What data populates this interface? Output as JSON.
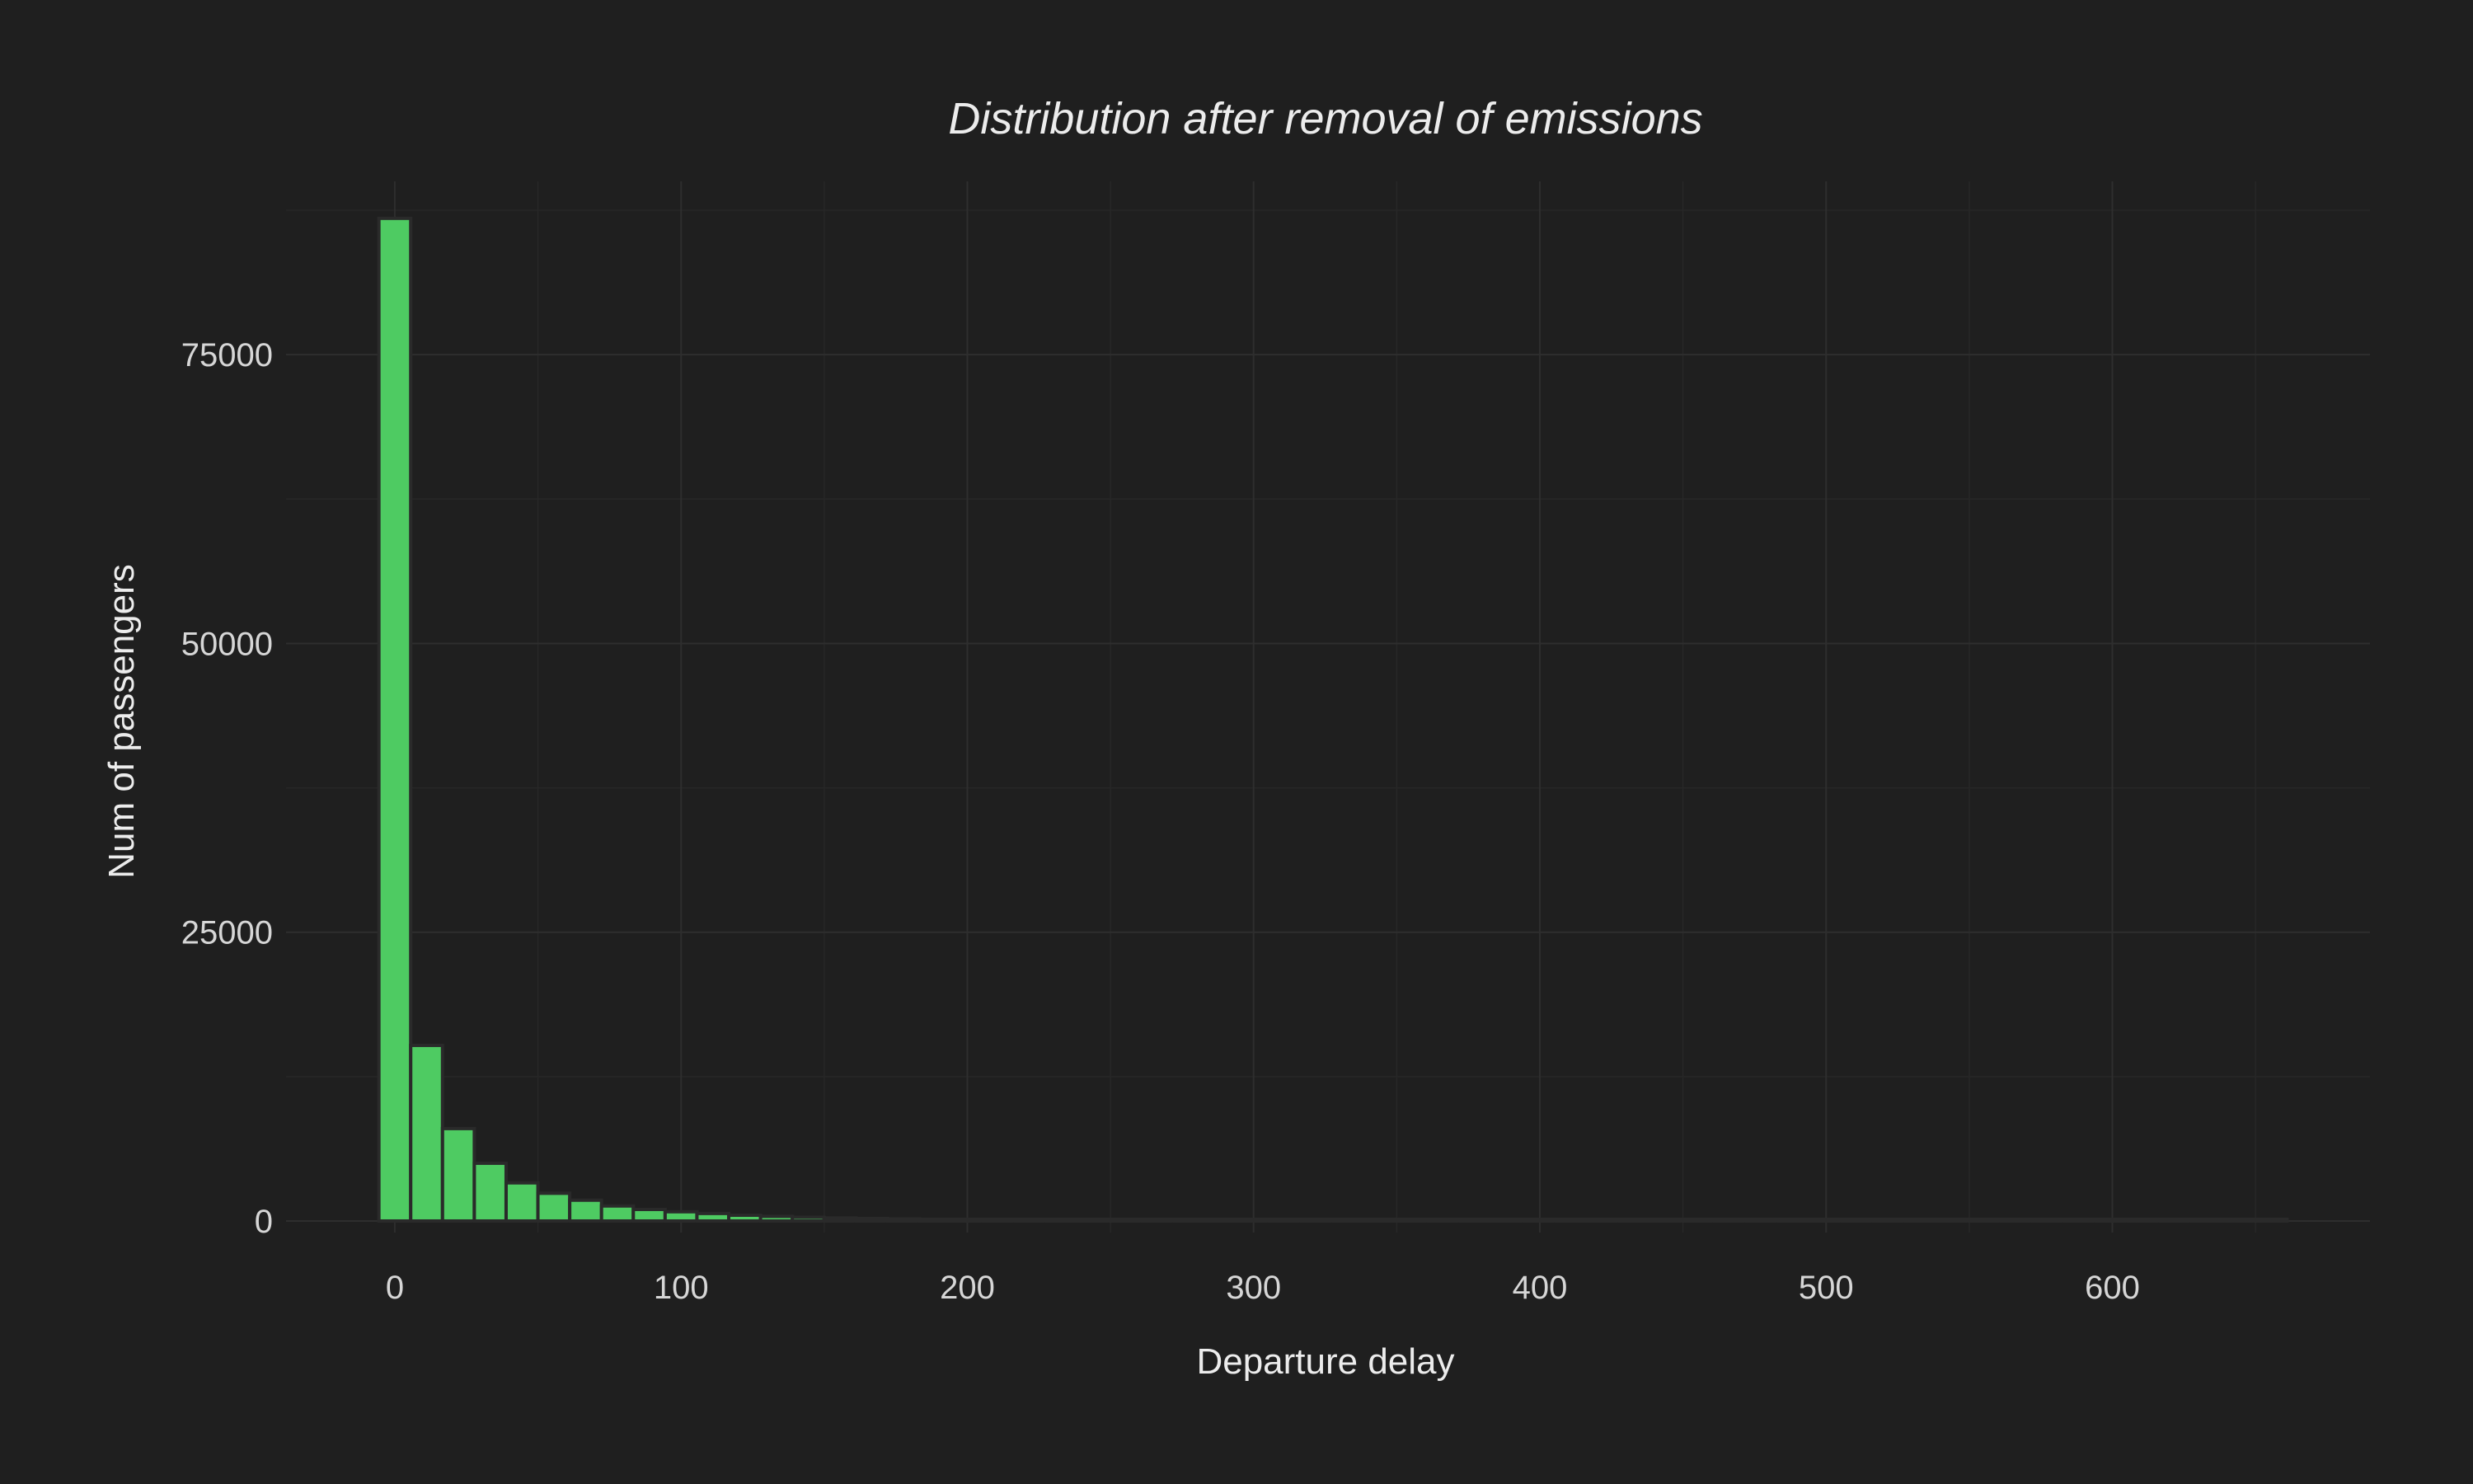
{
  "chart_data": {
    "type": "histogram",
    "title": "Distribution after removal of emissions",
    "xlabel": "Departure delay",
    "ylabel": "Num of passengers",
    "xlim": [
      -38,
      690
    ],
    "ylim": [
      -1000,
      90000
    ],
    "x_ticks": [
      0,
      100,
      200,
      300,
      400,
      500,
      600
    ],
    "x_tick_labels": [
      "0",
      "100",
      "200",
      "300",
      "400",
      "500",
      "600"
    ],
    "y_ticks": [
      0,
      25000,
      50000,
      75000
    ],
    "y_tick_labels": [
      "0",
      "25000",
      "50000",
      "75000"
    ],
    "bin_width": 11.11,
    "bin_start": -5.56,
    "values": [
      86800,
      15200,
      8000,
      5000,
      3300,
      2400,
      1800,
      1300,
      1000,
      800,
      650,
      500,
      400,
      320,
      260,
      220,
      180,
      150,
      130,
      110,
      95,
      80,
      70,
      60,
      50,
      45,
      40,
      35,
      30,
      26,
      22,
      20,
      18,
      16,
      14,
      12,
      11,
      10,
      9,
      8,
      8,
      7,
      6,
      6,
      5,
      5,
      4,
      4,
      4,
      3,
      3,
      3,
      3,
      2,
      2,
      2,
      2,
      2,
      2,
      2
    ],
    "bar_fill": "#4ecb62",
    "bar_outline": "#2a2a2a",
    "background": "#1f1f1f",
    "grid": true
  }
}
